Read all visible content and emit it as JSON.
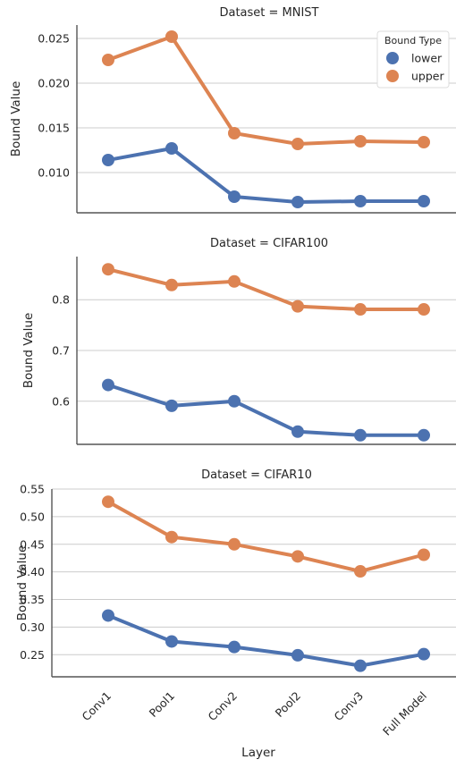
{
  "chart_data": [
    {
      "type": "line",
      "title": "Dataset = MNIST",
      "xlabel": "",
      "ylabel": "Bound Value",
      "categories": [
        "Conv1",
        "Pool1",
        "Conv2",
        "Pool2",
        "Conv3",
        "Full Model"
      ],
      "ylim": [
        0.0055,
        0.0265
      ],
      "yticks": [
        0.01,
        0.015,
        0.02,
        0.025
      ],
      "ytick_labels": [
        "0.010",
        "0.015",
        "0.020",
        "0.025"
      ],
      "grid": "horizontal",
      "series": [
        {
          "name": "lower",
          "color": "#4c72b0",
          "values": [
            0.0114,
            0.0127,
            0.0073,
            0.0067,
            0.0068,
            0.0068
          ]
        },
        {
          "name": "upper",
          "color": "#dd8452",
          "values": [
            0.0226,
            0.0252,
            0.0144,
            0.0132,
            0.0135,
            0.0134
          ]
        }
      ],
      "legend": {
        "title": "Bound Type",
        "placement": "top-right",
        "entries": [
          "lower",
          "upper"
        ]
      }
    },
    {
      "type": "line",
      "title": "Dataset = CIFAR100",
      "xlabel": "",
      "ylabel": "Bound Value",
      "categories": [
        "Conv1",
        "Pool1",
        "Conv2",
        "Pool2",
        "Conv3",
        "Full Model"
      ],
      "ylim": [
        0.515,
        0.885
      ],
      "yticks": [
        0.6,
        0.7,
        0.8
      ],
      "ytick_labels": [
        "0.6",
        "0.7",
        "0.8"
      ],
      "grid": "horizontal",
      "series": [
        {
          "name": "lower",
          "color": "#4c72b0",
          "values": [
            0.632,
            0.591,
            0.6,
            0.54,
            0.533,
            0.533
          ]
        },
        {
          "name": "upper",
          "color": "#dd8452",
          "values": [
            0.86,
            0.829,
            0.836,
            0.787,
            0.781,
            0.781
          ]
        }
      ]
    },
    {
      "type": "line",
      "title": "Dataset = CIFAR10",
      "xlabel": "Layer",
      "ylabel": "Bound Value",
      "categories": [
        "Conv1",
        "Pool1",
        "Conv2",
        "Pool2",
        "Conv3",
        "Full Model"
      ],
      "ylim": [
        0.21,
        0.55
      ],
      "yticks": [
        0.25,
        0.3,
        0.35,
        0.4,
        0.45,
        0.5,
        0.55
      ],
      "ytick_labels": [
        "0.25",
        "0.30",
        "0.35",
        "0.40",
        "0.45",
        "0.50",
        "0.55"
      ],
      "grid": "horizontal",
      "series": [
        {
          "name": "lower",
          "color": "#4c72b0",
          "values": [
            0.321,
            0.274,
            0.264,
            0.249,
            0.23,
            0.251
          ]
        },
        {
          "name": "upper",
          "color": "#dd8452",
          "values": [
            0.527,
            0.463,
            0.45,
            0.428,
            0.401,
            0.431
          ]
        }
      ]
    }
  ]
}
